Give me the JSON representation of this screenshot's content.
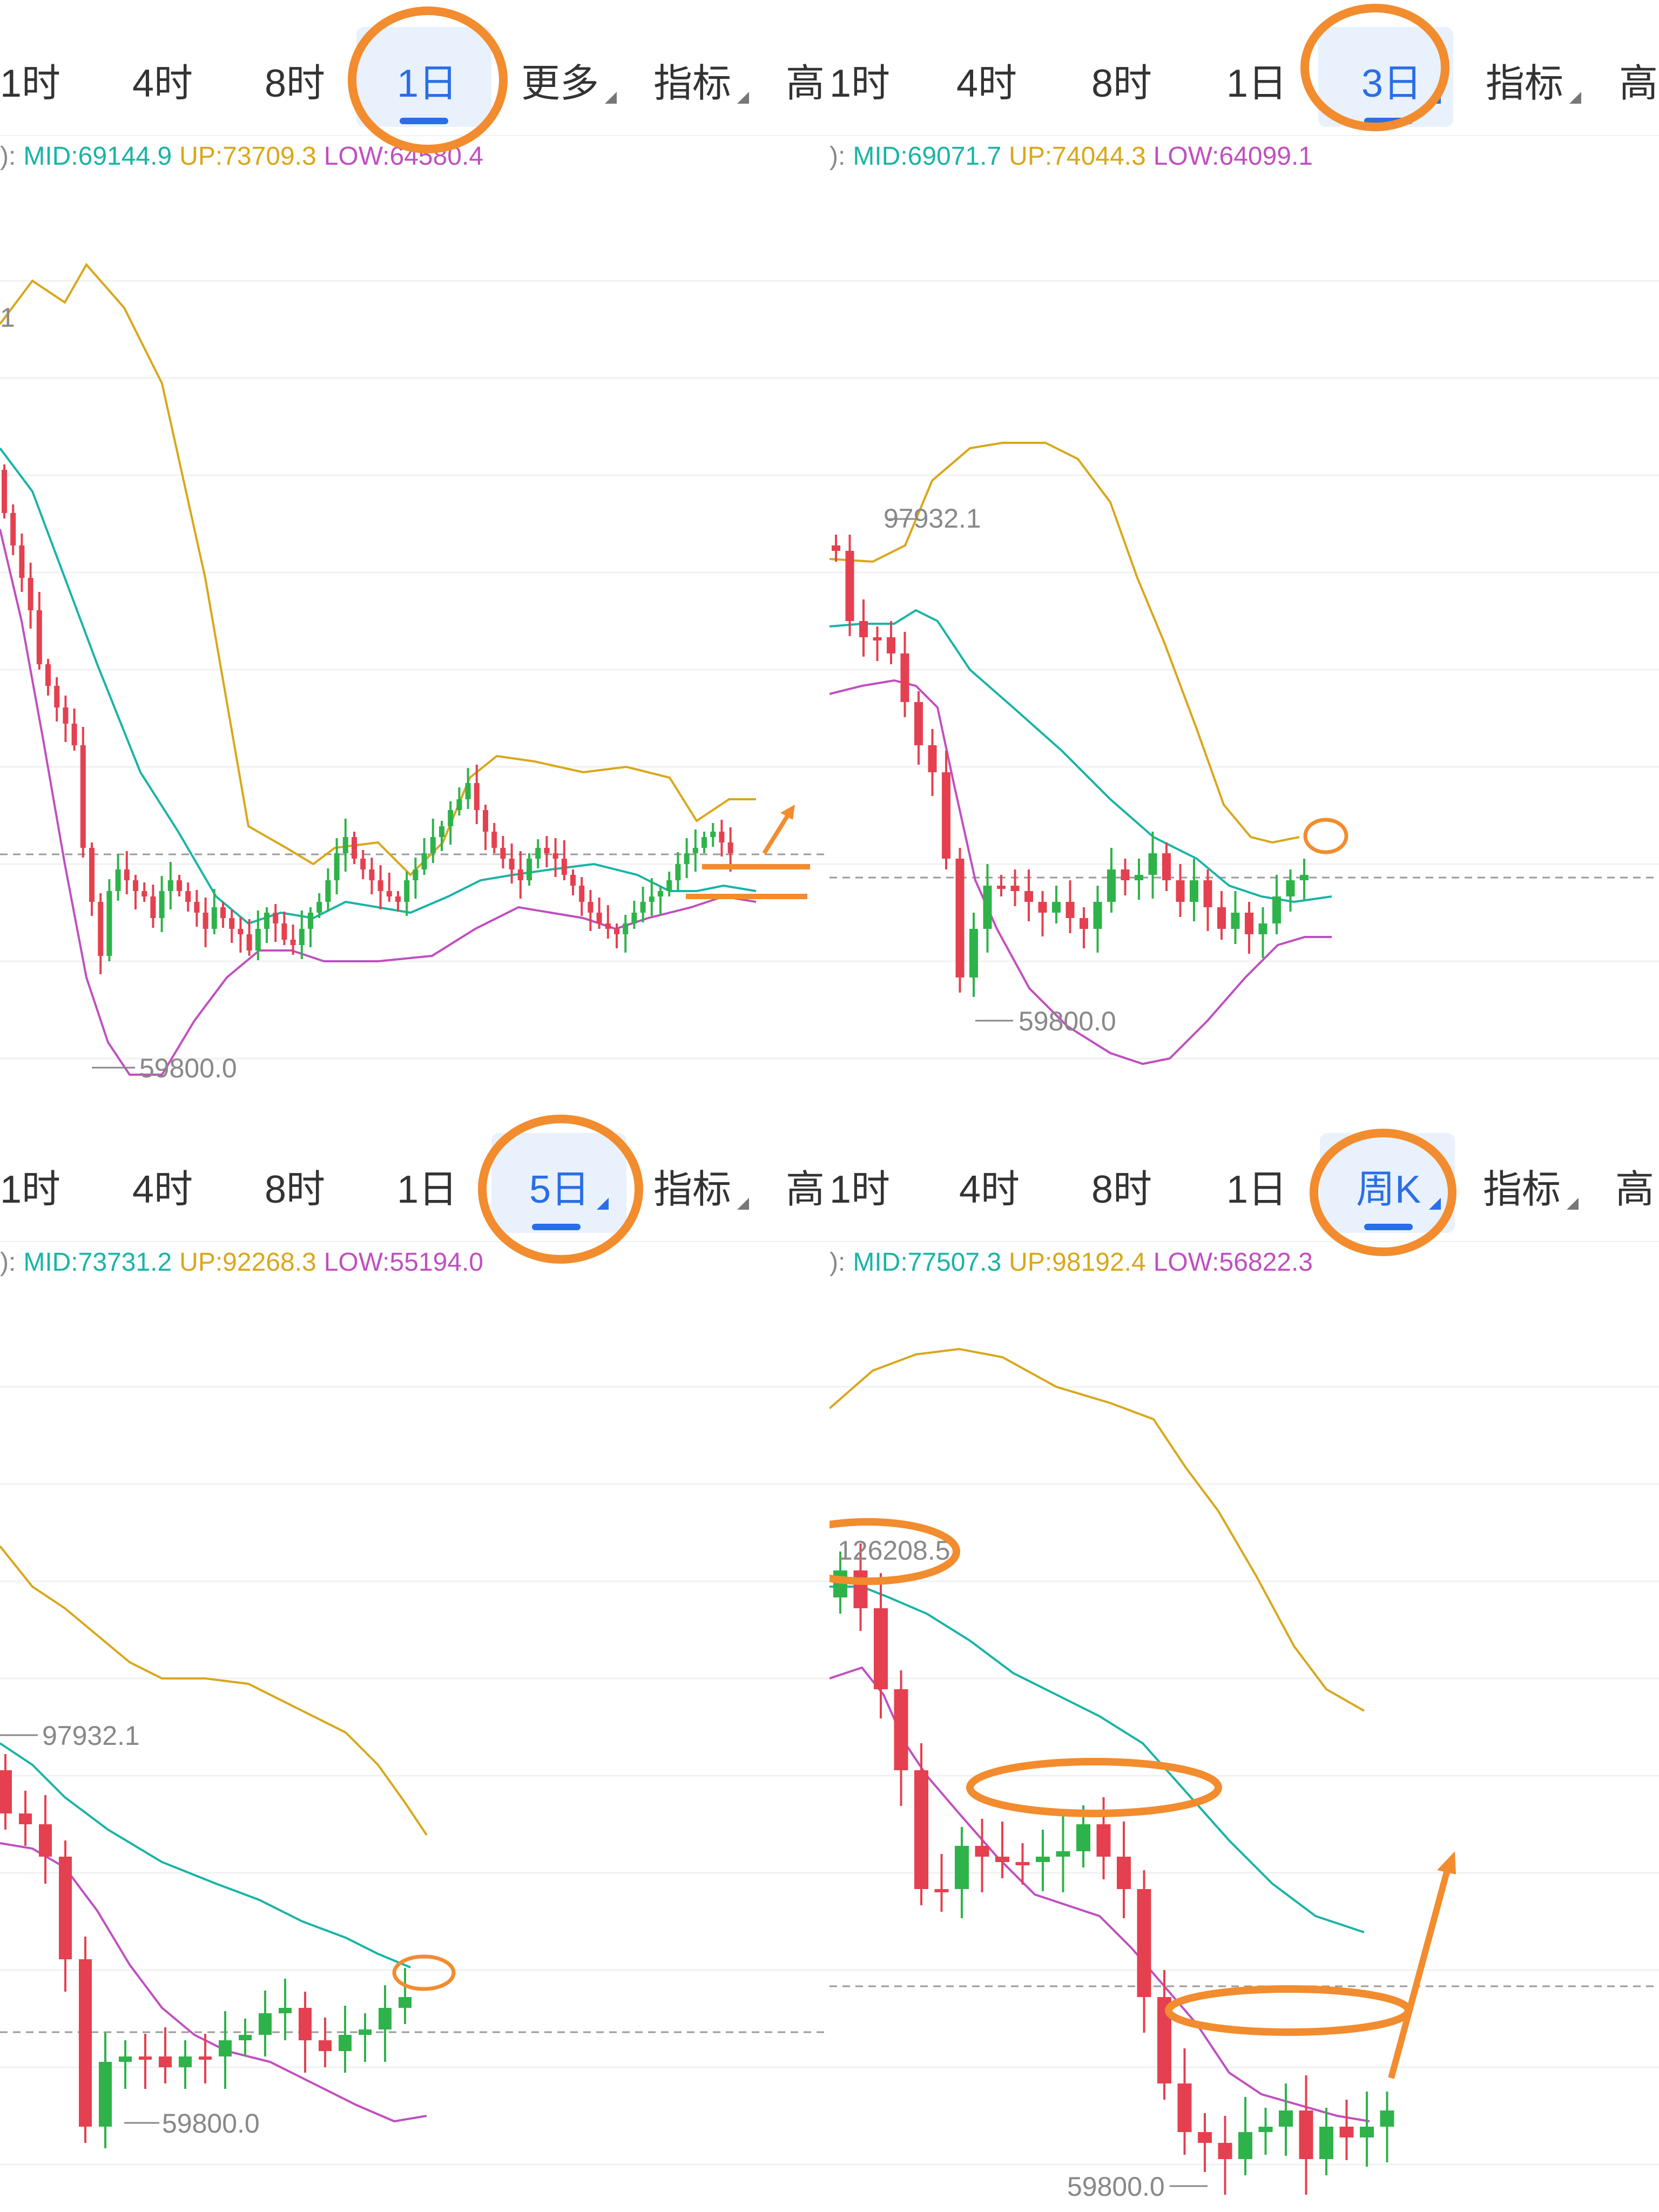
{
  "colors": {
    "up_candle": "#2eb34a",
    "down_candle": "#e5404f",
    "mid": "#19b4a6",
    "upper": "#d9a71a",
    "lower": "#c04fc0",
    "highlight": "#f28c2e",
    "accent": "#2a6ee6"
  },
  "tabs_common": {
    "t1": "1时",
    "t4": "4时",
    "t8": "8时",
    "d1": "1日",
    "indicator": "指标",
    "more": "更多",
    "high": "高"
  },
  "panels": [
    {
      "id": "tl",
      "selected_tab": "1日",
      "tabs": [
        "1时",
        "4时",
        "8时",
        "1日",
        "更多",
        "指标",
        "高"
      ],
      "boll": {
        "prefix": "):",
        "mid": "MID:69144.9",
        "up": "UP:73709.3",
        "low": "LOW:64580.4"
      },
      "labels": {
        "high_mark": "1",
        "low_mark": "59800.0"
      }
    },
    {
      "id": "tr",
      "selected_tab": "3日",
      "tabs": [
        "1时",
        "4时",
        "8时",
        "1日",
        "3日",
        "指标",
        "高"
      ],
      "boll": {
        "prefix": "):",
        "mid": "MID:69071.7",
        "up": "UP:74044.3",
        "low": "LOW:64099.1"
      },
      "labels": {
        "high_mark": "97932.1",
        "low_mark": "59800.0"
      }
    },
    {
      "id": "bl",
      "selected_tab": "5日",
      "tabs": [
        "1时",
        "4时",
        "8时",
        "1日",
        "5日",
        "指标",
        "高"
      ],
      "boll": {
        "prefix": "):",
        "mid": "MID:73731.2",
        "up": "UP:92268.3",
        "low": "LOW:55194.0"
      },
      "labels": {
        "high_mark": "97932.1",
        "low_mark": "59800.0"
      }
    },
    {
      "id": "br",
      "selected_tab": "周K",
      "tabs": [
        "1时",
        "4时",
        "8时",
        "1日",
        "周K",
        "指标",
        "高"
      ],
      "boll": {
        "prefix": "):",
        "mid": "MID:77507.3",
        "up": "UP:98192.4",
        "low": "LOW:56822.3"
      },
      "labels": {
        "high_mark": "126208.5",
        "low_mark": "59800.0"
      }
    }
  ],
  "chart_data": [
    {
      "type": "candlestick",
      "timeframe": "1日",
      "title": "",
      "indicator": "BOLL",
      "high_label": "1",
      "low_label": "59800.0",
      "approx_candles": 86
    },
    {
      "type": "candlestick",
      "timeframe": "3日",
      "title": "",
      "indicator": "BOLL",
      "high_label": "97932.1",
      "low_label": "59800.0",
      "approx_candles": 40
    },
    {
      "type": "candlestick",
      "timeframe": "5日",
      "title": "",
      "indicator": "BOLL",
      "high_label": "97932.1",
      "low_label": "59800.0",
      "approx_candles": 20
    },
    {
      "type": "candlestick",
      "timeframe": "周K",
      "title": "",
      "indicator": "BOLL",
      "high_label": "126208.5",
      "low_label": "59800.0",
      "approx_candles": 30
    }
  ]
}
